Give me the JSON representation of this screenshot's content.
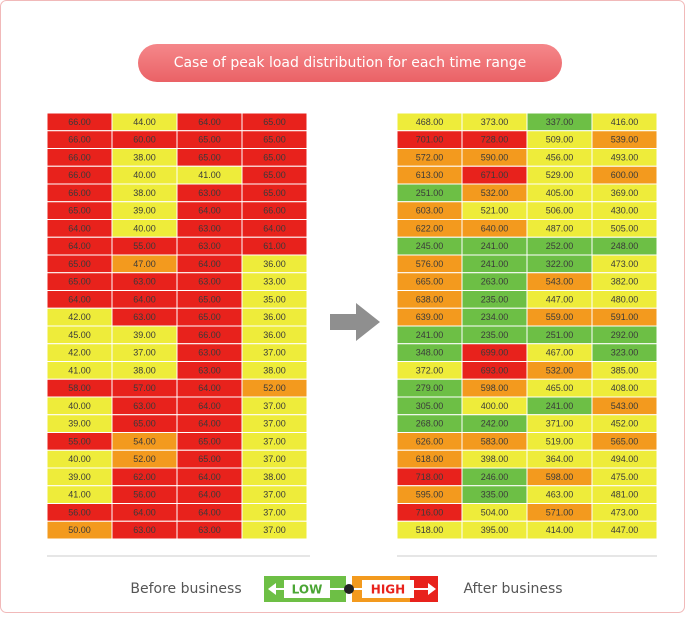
{
  "title": "Case of peak load distribution for each time range",
  "palette": {
    "r": "#e8221c",
    "o": "#f39a1e",
    "y": "#eeec3a",
    "g": "#6dbf45"
  },
  "before": {
    "rows": [
      [
        "66.00",
        "44.00",
        "64.00",
        "65.00"
      ],
      [
        "66.00",
        "60.00",
        "65.00",
        "65.00"
      ],
      [
        "66.00",
        "38.00",
        "65.00",
        "65.00"
      ],
      [
        "66.00",
        "40.00",
        "41.00",
        "65.00"
      ],
      [
        "66.00",
        "38.00",
        "63.00",
        "65.00"
      ],
      [
        "65.00",
        "39.00",
        "64.00",
        "66.00"
      ],
      [
        "64.00",
        "40.00",
        "63.00",
        "64.00"
      ],
      [
        "64.00",
        "55.00",
        "63.00",
        "61.00"
      ],
      [
        "65.00",
        "47.00",
        "64.00",
        "36.00"
      ],
      [
        "65.00",
        "63.00",
        "63.00",
        "33.00"
      ],
      [
        "64.00",
        "64.00",
        "65.00",
        "35.00"
      ],
      [
        "42.00",
        "63.00",
        "65.00",
        "36.00"
      ],
      [
        "45.00",
        "39.00",
        "66.00",
        "36.00"
      ],
      [
        "42.00",
        "37.00",
        "63.00",
        "37.00"
      ],
      [
        "41.00",
        "38.00",
        "63.00",
        "38.00"
      ],
      [
        "58.00",
        "57.00",
        "64.00",
        "52.00"
      ],
      [
        "40.00",
        "63.00",
        "64.00",
        "37.00"
      ],
      [
        "39.00",
        "65.00",
        "64.00",
        "37.00"
      ],
      [
        "55.00",
        "54.00",
        "65.00",
        "37.00"
      ],
      [
        "40.00",
        "52.00",
        "65.00",
        "37.00"
      ],
      [
        "39.00",
        "62.00",
        "64.00",
        "38.00"
      ],
      [
        "41.00",
        "56.00",
        "64.00",
        "37.00"
      ],
      [
        "56.00",
        "64.00",
        "64.00",
        "37.00"
      ],
      [
        "50.00",
        "63.00",
        "63.00",
        "37.00"
      ]
    ],
    "colors": [
      "ryrr",
      "rrrr",
      "ryrr",
      "ryyr",
      "ryrr",
      "ryrr",
      "ryrr",
      "rrrr",
      "rory",
      "rrry",
      "rrry",
      "yrry",
      "yyry",
      "yyry",
      "yyry",
      "rrro",
      "yrry",
      "yrry",
      "rory",
      "yory",
      "yrry",
      "yrry",
      "rrry",
      "orry"
    ]
  },
  "after": {
    "rows": [
      [
        "468.00",
        "373.00",
        "337.00",
        "416.00"
      ],
      [
        "701.00",
        "728.00",
        "509.00",
        "539.00"
      ],
      [
        "572.00",
        "590.00",
        "456.00",
        "493.00"
      ],
      [
        "613.00",
        "671.00",
        "529.00",
        "600.00"
      ],
      [
        "251.00",
        "532.00",
        "405.00",
        "369.00"
      ],
      [
        "603.00",
        "521.00",
        "506.00",
        "430.00"
      ],
      [
        "622.00",
        "640.00",
        "487.00",
        "505.00"
      ],
      [
        "245.00",
        "241.00",
        "252.00",
        "248.00"
      ],
      [
        "576.00",
        "241.00",
        "322.00",
        "473.00"
      ],
      [
        "665.00",
        "263.00",
        "543.00",
        "382.00"
      ],
      [
        "638.00",
        "235.00",
        "447.00",
        "480.00"
      ],
      [
        "639.00",
        "234.00",
        "559.00",
        "591.00"
      ],
      [
        "241.00",
        "235.00",
        "251.00",
        "292.00"
      ],
      [
        "348.00",
        "699.00",
        "467.00",
        "323.00"
      ],
      [
        "372.00",
        "693.00",
        "532.00",
        "385.00"
      ],
      [
        "279.00",
        "598.00",
        "465.00",
        "408.00"
      ],
      [
        "305.00",
        "400.00",
        "241.00",
        "543.00"
      ],
      [
        "268.00",
        "242.00",
        "371.00",
        "452.00"
      ],
      [
        "626.00",
        "583.00",
        "519.00",
        "565.00"
      ],
      [
        "618.00",
        "398.00",
        "364.00",
        "494.00"
      ],
      [
        "718.00",
        "246.00",
        "598.00",
        "475.00"
      ],
      [
        "595.00",
        "335.00",
        "463.00",
        "481.00"
      ],
      [
        "716.00",
        "504.00",
        "571.00",
        "473.00"
      ],
      [
        "518.00",
        "395.00",
        "414.00",
        "447.00"
      ]
    ],
    "colors": [
      "yygy",
      "rryo",
      "ooyy",
      "oryo",
      "goyy",
      "oyyy",
      "ooyy",
      "gggg",
      "oggy",
      "ogoy",
      "ogyy",
      "ogoo",
      "gggg",
      "gryg",
      "yroy",
      "goyy",
      "gygo",
      "ggyy",
      "ooyo",
      "oyyy",
      "rgoy",
      "ogyy",
      "ryoy",
      "yyyy"
    ]
  },
  "legend": {
    "low": "LOW",
    "high": "HIGH",
    "before": "Before business",
    "after": "After business"
  }
}
